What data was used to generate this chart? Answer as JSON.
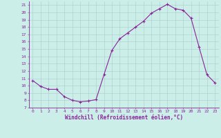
{
  "x": [
    0,
    1,
    2,
    3,
    4,
    5,
    6,
    7,
    8,
    9,
    10,
    11,
    12,
    13,
    14,
    15,
    16,
    17,
    18,
    19,
    20,
    21,
    22,
    23
  ],
  "y": [
    10.7,
    9.9,
    9.5,
    9.5,
    8.5,
    8.0,
    7.8,
    7.9,
    8.1,
    11.5,
    14.8,
    16.4,
    17.2,
    18.0,
    18.8,
    19.9,
    20.5,
    21.1,
    20.5,
    20.3,
    19.2,
    15.3,
    11.5,
    10.4
  ],
  "line_color": "#882299",
  "marker": "+",
  "marker_size": 3,
  "marker_linewidth": 0.8,
  "line_width": 0.8,
  "background_color": "#cceee8",
  "grid_color": "#aacccc",
  "xlabel": "Windchill (Refroidissement éolien,°C)",
  "xlabel_color": "#882299",
  "tick_color": "#882299",
  "ylim": [
    7,
    21.5
  ],
  "xlim": [
    -0.5,
    23.5
  ],
  "yticks": [
    7,
    8,
    9,
    10,
    11,
    12,
    13,
    14,
    15,
    16,
    17,
    18,
    19,
    20,
    21
  ],
  "xticks": [
    0,
    1,
    2,
    3,
    4,
    5,
    6,
    7,
    8,
    9,
    10,
    11,
    12,
    13,
    14,
    15,
    16,
    17,
    18,
    19,
    20,
    21,
    22,
    23
  ],
  "tick_fontsize": 4.5,
  "xlabel_fontsize": 5.5,
  "figsize": [
    3.2,
    2.0
  ],
  "dpi": 100
}
